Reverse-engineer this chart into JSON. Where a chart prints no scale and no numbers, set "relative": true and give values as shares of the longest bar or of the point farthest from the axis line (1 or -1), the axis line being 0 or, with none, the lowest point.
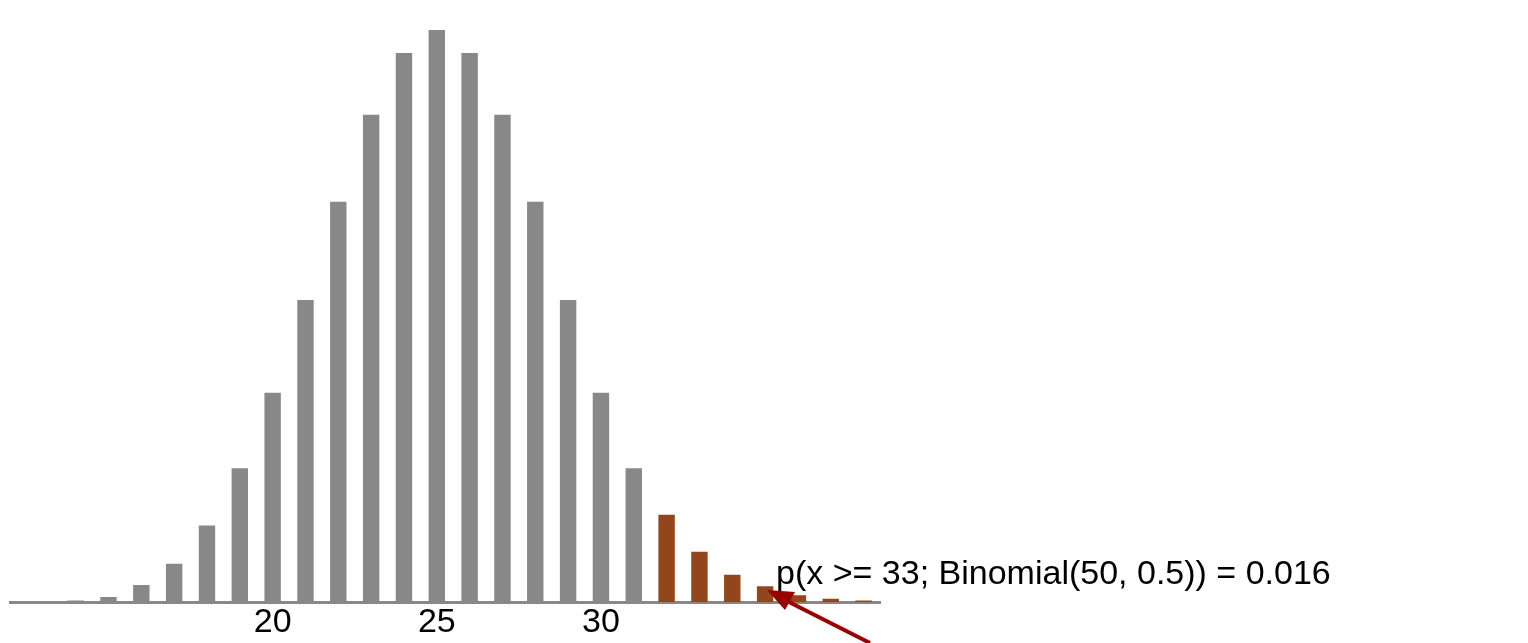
{
  "chart_data": {
    "type": "bar",
    "relative": true,
    "x": [
      14,
      15,
      16,
      17,
      18,
      19,
      20,
      21,
      22,
      23,
      24,
      25,
      26,
      27,
      28,
      29,
      30,
      31,
      32,
      33,
      34,
      35,
      36,
      37,
      38
    ],
    "values": [
      0.003,
      0.009,
      0.03,
      0.067,
      0.134,
      0.234,
      0.366,
      0.528,
      0.7,
      0.852,
      0.96,
      1,
      0.96,
      0.852,
      0.7,
      0.528,
      0.366,
      0.234,
      0.153,
      0.088,
      0.048,
      0.028,
      0.012,
      0.006,
      0.003
    ],
    "colors": [
      "#888888",
      "#888888",
      "#888888",
      "#888888",
      "#888888",
      "#888888",
      "#888888",
      "#888888",
      "#888888",
      "#888888",
      "#888888",
      "#888888",
      "#888888",
      "#888888",
      "#888888",
      "#888888",
      "#888888",
      "#888888",
      "#93461c",
      "#93461c",
      "#93461c",
      "#93461c",
      "#93461c",
      "#93461c",
      "#93461c"
    ],
    "xlim": [
      12,
      38.5
    ],
    "xticks": [
      20,
      25,
      30
    ],
    "grid": false,
    "legend": false,
    "annotations": [
      "p(x >= 33; Binomial(50, 0.5)) = 0.016"
    ]
  }
}
